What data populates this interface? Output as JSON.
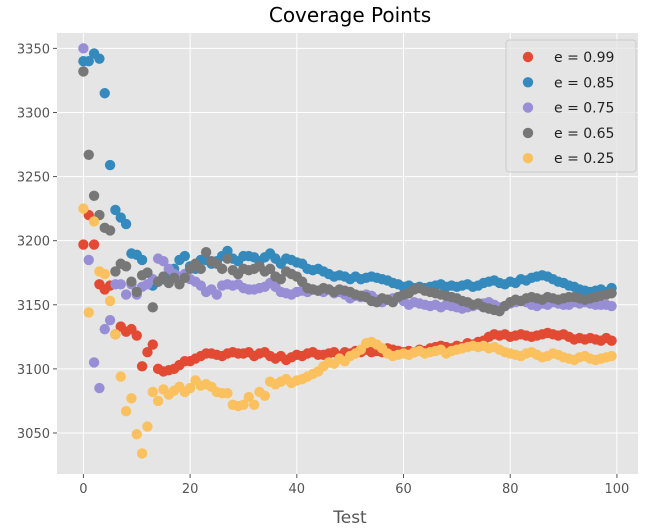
{
  "chart_data": {
    "type": "scatter",
    "title": "Coverage Points",
    "xlabel": "Test",
    "ylabel": "",
    "xlim": [
      -4.95,
      103.95
    ],
    "ylim": [
      3018,
      3362
    ],
    "xticks": [
      0,
      20,
      40,
      60,
      80,
      100
    ],
    "yticks": [
      3050,
      3100,
      3150,
      3200,
      3250,
      3300,
      3350
    ],
    "grid": true,
    "legend_position": "top-right",
    "colors": {
      "panel_bg": "#e5e5e5",
      "grid": "#ffffff",
      "text": "#555555"
    },
    "series": [
      {
        "name": "e = 0.99",
        "color": "#e24a33",
        "values": [
          3197,
          3220,
          3197,
          3166,
          3162,
          3165,
          3127,
          3133,
          3129,
          3131,
          3126,
          3102,
          3113,
          3119,
          3100,
          3098,
          3099,
          3100,
          3103,
          3106,
          3106,
          3108,
          3110,
          3112,
          3112,
          3111,
          3110,
          3112,
          3113,
          3112,
          3112,
          3113,
          3110,
          3112,
          3113,
          3110,
          3108,
          3110,
          3107,
          3109,
          3111,
          3110,
          3112,
          3113,
          3111,
          3111,
          3112,
          3113,
          3110,
          3113,
          3112,
          3114,
          3113,
          3115,
          3113,
          3114,
          3113,
          3116,
          3115,
          3114,
          3113,
          3114,
          3113,
          3115,
          3114,
          3116,
          3117,
          3118,
          3117,
          3116,
          3118,
          3117,
          3120,
          3119,
          3121,
          3122,
          3125,
          3127,
          3126,
          3127,
          3125,
          3126,
          3127,
          3126,
          3125,
          3126,
          3127,
          3128,
          3127,
          3126,
          3127,
          3125,
          3123,
          3124,
          3123,
          3124,
          3123,
          3122,
          3124,
          3122
        ]
      },
      {
        "name": "e = 0.85",
        "color": "#348abd",
        "values": [
          3340,
          3340,
          3346,
          3342,
          3315,
          3259,
          3224,
          3218,
          3213,
          3190,
          3189,
          3185,
          3175,
          3165,
          3168,
          3170,
          3172,
          3178,
          3185,
          3188,
          3180,
          3178,
          3185,
          3185,
          3182,
          3184,
          3188,
          3192,
          3186,
          3184,
          3188,
          3188,
          3187,
          3184,
          3187,
          3190,
          3186,
          3182,
          3186,
          3185,
          3183,
          3182,
          3178,
          3177,
          3178,
          3176,
          3174,
          3172,
          3173,
          3172,
          3170,
          3172,
          3170,
          3171,
          3172,
          3171,
          3170,
          3169,
          3167,
          3166,
          3164,
          3165,
          3163,
          3164,
          3163,
          3164,
          3165,
          3166,
          3164,
          3165,
          3164,
          3165,
          3166,
          3164,
          3165,
          3167,
          3168,
          3169,
          3167,
          3166,
          3168,
          3167,
          3170,
          3169,
          3171,
          3172,
          3173,
          3172,
          3170,
          3168,
          3167,
          3165,
          3164,
          3162,
          3161,
          3160,
          3161,
          3162,
          3160,
          3163
        ]
      },
      {
        "name": "e = 0.75",
        "color": "#988ed5",
        "values": [
          3350,
          3185,
          3105,
          3085,
          3131,
          3138,
          3166,
          3166,
          3158,
          3166,
          3158,
          3164,
          3166,
          3170,
          3186,
          3184,
          3178,
          3174,
          3172,
          3174,
          3170,
          3168,
          3165,
          3160,
          3162,
          3158,
          3165,
          3166,
          3165,
          3166,
          3163,
          3162,
          3162,
          3163,
          3164,
          3167,
          3164,
          3160,
          3159,
          3158,
          3160,
          3161,
          3160,
          3162,
          3161,
          3160,
          3162,
          3159,
          3160,
          3158,
          3155,
          3157,
          3156,
          3158,
          3157,
          3154,
          3152,
          3154,
          3155,
          3156,
          3153,
          3150,
          3152,
          3151,
          3150,
          3149,
          3150,
          3148,
          3150,
          3149,
          3148,
          3147,
          3148,
          3149,
          3150,
          3151,
          3152,
          3150,
          3148,
          3149,
          3151,
          3152,
          3153,
          3152,
          3150,
          3149,
          3151,
          3150,
          3152,
          3151,
          3150,
          3150,
          3152,
          3151,
          3152,
          3151,
          3150,
          3150,
          3150,
          3149
        ]
      },
      {
        "name": "e = 0.65",
        "color": "#777777",
        "values": [
          3332,
          3267,
          3235,
          3220,
          3210,
          3208,
          3176,
          3182,
          3180,
          3168,
          3160,
          3173,
          3175,
          3148,
          3168,
          3172,
          3167,
          3171,
          3166,
          3171,
          3178,
          3182,
          3178,
          3191,
          3184,
          3182,
          3178,
          3186,
          3177,
          3174,
          3178,
          3177,
          3178,
          3180,
          3176,
          3178,
          3172,
          3170,
          3176,
          3174,
          3172,
          3168,
          3163,
          3162,
          3161,
          3163,
          3162,
          3160,
          3162,
          3161,
          3160,
          3158,
          3157,
          3156,
          3153,
          3152,
          3155,
          3154,
          3152,
          3156,
          3158,
          3159,
          3162,
          3163,
          3161,
          3160,
          3159,
          3158,
          3157,
          3156,
          3155,
          3153,
          3152,
          3150,
          3151,
          3148,
          3147,
          3146,
          3145,
          3149,
          3152,
          3154,
          3153,
          3155,
          3156,
          3155,
          3154,
          3156,
          3155,
          3154,
          3155,
          3156,
          3156,
          3155,
          3154,
          3155,
          3156,
          3157,
          3158,
          3159
        ]
      },
      {
        "name": "e = 0.25",
        "color": "#fbc15e",
        "values": [
          3225,
          3144,
          3215,
          3176,
          3174,
          3153,
          3127,
          3094,
          3067,
          3077,
          3049,
          3034,
          3055,
          3082,
          3075,
          3084,
          3080,
          3083,
          3086,
          3082,
          3085,
          3091,
          3087,
          3088,
          3086,
          3082,
          3081,
          3081,
          3072,
          3071,
          3072,
          3078,
          3072,
          3082,
          3079,
          3090,
          3088,
          3090,
          3092,
          3089,
          3091,
          3092,
          3094,
          3096,
          3098,
          3102,
          3105,
          3104,
          3108,
          3106,
          3110,
          3112,
          3115,
          3120,
          3121,
          3119,
          3116,
          3112,
          3110,
          3111,
          3112,
          3111,
          3113,
          3114,
          3112,
          3113,
          3114,
          3115,
          3112,
          3114,
          3115,
          3116,
          3117,
          3118,
          3117,
          3118,
          3116,
          3117,
          3115,
          3113,
          3112,
          3111,
          3110,
          3112,
          3113,
          3111,
          3109,
          3110,
          3112,
          3111,
          3109,
          3108,
          3107,
          3109,
          3110,
          3108,
          3107,
          3108,
          3109,
          3110
        ]
      }
    ]
  }
}
